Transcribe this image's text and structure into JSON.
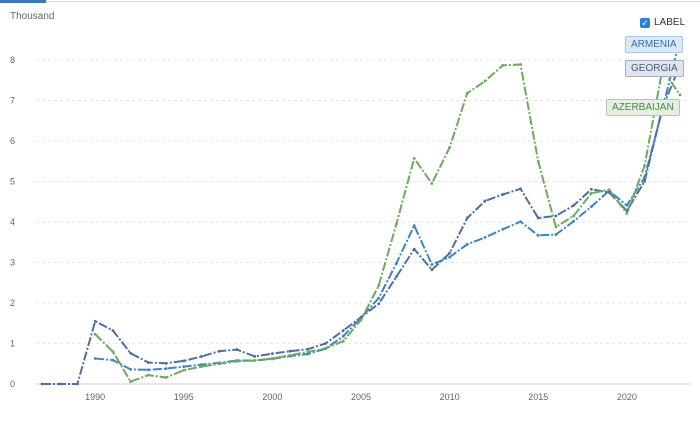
{
  "unit_label": "Thousand",
  "legend": {
    "toggle_label": "LABEL",
    "checked": true
  },
  "tags": {
    "armenia": "ARMENIA",
    "georgia": "GEORGIA",
    "azerbaijan": "AZERBAIJAN"
  },
  "chart_data": {
    "type": "line",
    "title": "",
    "xlabel": "",
    "ylabel": "Thousand",
    "xlim": [
      1987,
      2023
    ],
    "ylim": [
      0,
      8
    ],
    "x_ticks": [
      1990,
      1995,
      2000,
      2005,
      2010,
      2015,
      2020
    ],
    "y_ticks": [
      0,
      1,
      2,
      3,
      4,
      5,
      6,
      7,
      8
    ],
    "grid": true,
    "series": [
      {
        "name": "ARMENIA",
        "color": "#3f86c0",
        "x": [
          1990,
          1991,
          1992,
          1993,
          1994,
          1995,
          1996,
          1997,
          1998,
          1999,
          2000,
          2001,
          2002,
          2003,
          2004,
          2005,
          2006,
          2007,
          2008,
          2009,
          2010,
          2011,
          2012,
          2013,
          2014,
          2015,
          2016,
          2017,
          2018,
          2019,
          2020,
          2021,
          2022,
          2023
        ],
        "values": [
          0.63,
          0.59,
          0.36,
          0.35,
          0.38,
          0.43,
          0.48,
          0.52,
          0.58,
          0.58,
          0.62,
          0.69,
          0.74,
          0.87,
          1.18,
          1.64,
          2.12,
          2.98,
          3.91,
          2.95,
          3.13,
          3.45,
          3.62,
          3.82,
          4.01,
          3.67,
          3.69,
          4.02,
          4.38,
          4.77,
          4.41,
          5.1,
          6.77,
          8.53
        ]
      },
      {
        "name": "GEORGIA",
        "color": "#4f6fa0",
        "x": [
          1987,
          1988,
          1989,
          1990,
          1991,
          1992,
          1993,
          1994,
          1995,
          1996,
          1997,
          1998,
          1999,
          2000,
          2001,
          2002,
          2003,
          2004,
          2005,
          2006,
          2007,
          2008,
          2009,
          2010,
          2011,
          2012,
          2013,
          2014,
          2015,
          2016,
          2017,
          2018,
          2019,
          2020,
          2021,
          2022,
          2023
        ],
        "values": [
          0,
          0,
          0,
          1.55,
          1.32,
          0.76,
          0.53,
          0.51,
          0.57,
          0.68,
          0.81,
          0.85,
          0.68,
          0.75,
          0.81,
          0.86,
          1.0,
          1.32,
          1.65,
          1.98,
          2.65,
          3.33,
          2.82,
          3.23,
          4.1,
          4.52,
          4.68,
          4.82,
          4.1,
          4.15,
          4.41,
          4.81,
          4.73,
          4.28,
          5.0,
          6.8,
          7.88
        ]
      },
      {
        "name": "AZERBAIJAN",
        "color": "#6cab5e",
        "x": [
          1990,
          1991,
          1992,
          1993,
          1994,
          1995,
          1996,
          1997,
          1998,
          1999,
          2000,
          2001,
          2002,
          2003,
          2004,
          2005,
          2006,
          2007,
          2008,
          2009,
          2010,
          2011,
          2012,
          2013,
          2014,
          2015,
          2016,
          2017,
          2018,
          2019,
          2020,
          2021,
          2022,
          2023
        ],
        "values": [
          1.23,
          0.8,
          0.06,
          0.22,
          0.16,
          0.34,
          0.43,
          0.5,
          0.56,
          0.58,
          0.63,
          0.71,
          0.79,
          0.88,
          1.06,
          1.58,
          2.43,
          3.95,
          5.57,
          4.95,
          5.84,
          7.18,
          7.48,
          7.87,
          7.89,
          5.5,
          3.88,
          4.15,
          4.71,
          4.8,
          4.21,
          5.39,
          7.76,
          7.14
        ]
      }
    ]
  }
}
